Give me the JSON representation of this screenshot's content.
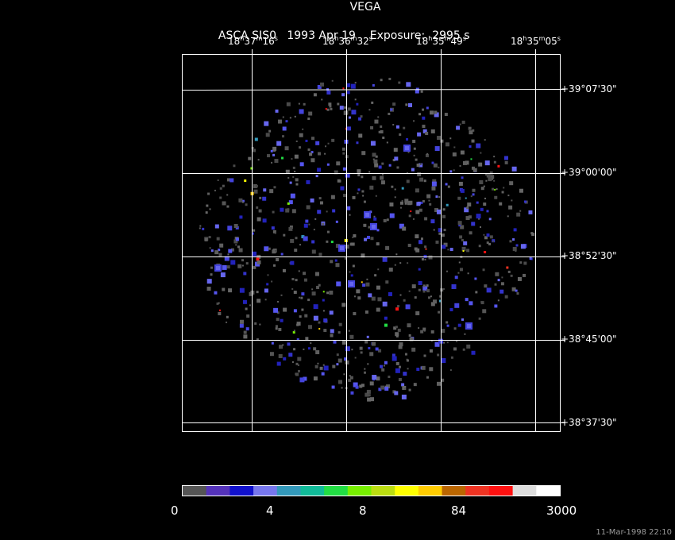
{
  "header": {
    "target": "VEGA",
    "instrument": "ASCA SIS0",
    "date": "1993 Apr 19",
    "exposure_label": "Exposure:",
    "exposure_value": "2995 s"
  },
  "ra_labels": [
    {
      "h": "18",
      "m": "37",
      "s": "16"
    },
    {
      "h": "18",
      "m": "36",
      "s": "32"
    },
    {
      "h": "18",
      "m": "35",
      "s": "49"
    },
    {
      "h": "18",
      "m": "35",
      "s": "05"
    }
  ],
  "dec_labels": [
    "+39°07'30\"",
    "+39°00'00\"",
    "+38°52'30\"",
    "+38°45'00\"",
    "+38°37'30\""
  ],
  "colorbar": {
    "colors": [
      "#555555",
      "#5533bb",
      "#1111cc",
      "#7777ee",
      "#3399bb",
      "#11bb99",
      "#22dd44",
      "#77ee00",
      "#bbdd11",
      "#ffff00",
      "#ffcc00",
      "#bb6600",
      "#ee3322",
      "#ff1111",
      "#dddddd",
      "#ffffff"
    ],
    "labels": [
      "0",
      "4",
      "8",
      "84",
      "3000"
    ]
  },
  "timestamp": "11-Mar-1998 22:10"
}
